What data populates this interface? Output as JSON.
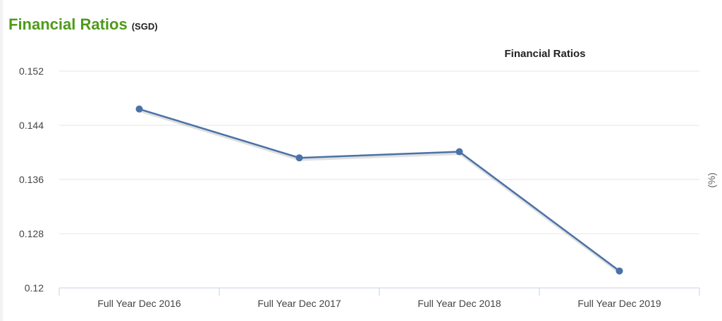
{
  "header": {
    "title": "Financial Ratios",
    "currency": "(SGD)"
  },
  "chart_data": {
    "type": "line",
    "title": "Financial Ratios",
    "ylabel": "(%)",
    "xlabel": "",
    "categories": [
      "Full Year Dec 2016",
      "Full Year Dec 2017",
      "Full Year Dec 2018",
      "Full Year Dec 2019"
    ],
    "series": [
      {
        "values": [
          0.1464,
          0.1392,
          0.1401,
          0.1225
        ],
        "color": "#4a72a8"
      }
    ],
    "ylim": [
      0.12,
      0.152
    ],
    "yticks": [
      "0.12",
      "0.128",
      "0.136",
      "0.144",
      "0.152"
    ],
    "grid": true,
    "gridColor": "#e6e6e6"
  }
}
